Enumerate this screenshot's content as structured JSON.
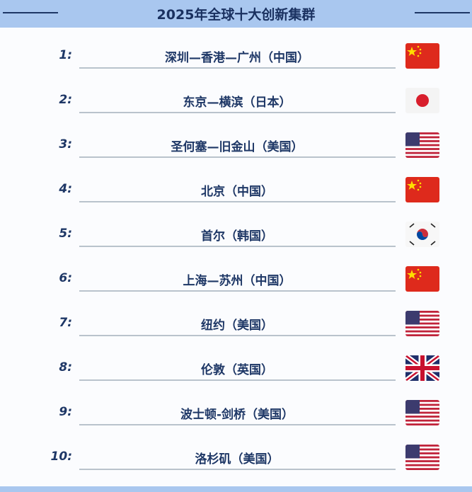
{
  "title": "2025年全球十大创新集群",
  "colors": {
    "header_band": "#a9c7ef",
    "text": "#1e3766"
  },
  "items": [
    {
      "rank": "1:",
      "name": "深圳—香港—广州（中国）",
      "flag": "china-flag-icon"
    },
    {
      "rank": "2:",
      "name": "东京—横滨（日本）",
      "flag": "japan-flag-icon"
    },
    {
      "rank": "3:",
      "name": "圣何塞—旧金山（美国）",
      "flag": "usa-flag-icon"
    },
    {
      "rank": "4:",
      "name": "北京（中国）",
      "flag": "china-flag-icon"
    },
    {
      "rank": "5:",
      "name": "首尔（韩国）",
      "flag": "korea-flag-icon"
    },
    {
      "rank": "6:",
      "name": "上海—苏州（中国）",
      "flag": "china-flag-icon"
    },
    {
      "rank": "7:",
      "name": "纽约（美国）",
      "flag": "usa-flag-icon"
    },
    {
      "rank": "8:",
      "name": "伦敦（英国）",
      "flag": "uk-flag-icon"
    },
    {
      "rank": "9:",
      "name": "波士顿-剑桥（美国）",
      "flag": "usa-flag-icon"
    },
    {
      "rank": "10:",
      "name": "洛杉矶（美国）",
      "flag": "usa-flag-icon"
    }
  ]
}
